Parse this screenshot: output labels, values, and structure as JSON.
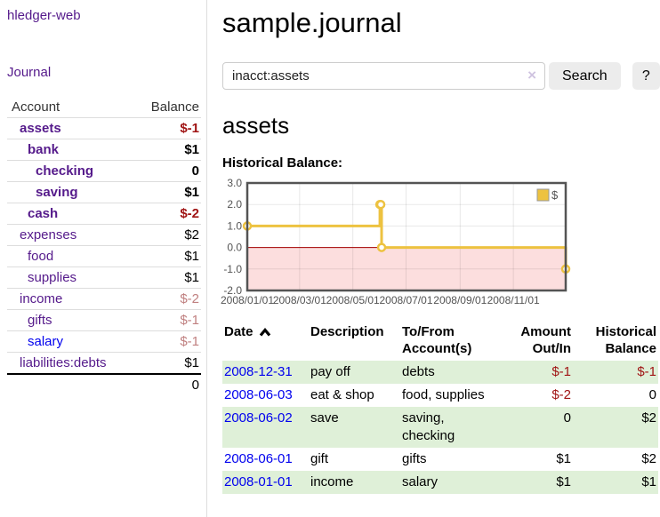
{
  "sidebar": {
    "brand": "hledger-web",
    "nav_journal": "Journal",
    "accounts_table": {
      "headers": [
        "Account",
        "Balance"
      ],
      "rows": [
        {
          "label": "assets",
          "depth": 1,
          "bold": true,
          "balance": "$-1",
          "balance_style": "neg-strong"
        },
        {
          "label": "bank",
          "depth": 2,
          "bold": true,
          "balance": "$1",
          "balance_style": ""
        },
        {
          "label": "checking",
          "depth": 3,
          "bold": true,
          "balance": "0",
          "balance_style": ""
        },
        {
          "label": "saving",
          "depth": 3,
          "bold": true,
          "balance": "$1",
          "balance_style": ""
        },
        {
          "label": "cash",
          "depth": 2,
          "bold": true,
          "balance": "$-2",
          "balance_style": "neg-strong"
        },
        {
          "label": "expenses",
          "depth": 1,
          "bold": false,
          "balance": "$2",
          "balance_style": ""
        },
        {
          "label": "food",
          "depth": 2,
          "bold": false,
          "balance": "$1",
          "balance_style": ""
        },
        {
          "label": "supplies",
          "depth": 2,
          "bold": false,
          "balance": "$1",
          "balance_style": ""
        },
        {
          "label": "income",
          "depth": 1,
          "bold": false,
          "balance": "$-2",
          "balance_style": "neg-soft"
        },
        {
          "label": "gifts",
          "depth": 2,
          "bold": false,
          "balance": "$-1",
          "balance_style": "neg-soft"
        },
        {
          "label": "salary",
          "depth": 2,
          "bold": false,
          "balance": "$-1",
          "balance_style": "neg-soft",
          "link_color": "blue"
        },
        {
          "label": "liabilities:debts",
          "depth": 1,
          "bold": false,
          "balance": "$1",
          "balance_style": ""
        }
      ],
      "total": "0"
    }
  },
  "main": {
    "title": "sample.journal",
    "search": {
      "value": "inacct:assets",
      "clear_icon": "×",
      "search_button": "Search",
      "help_button": "?"
    },
    "account_heading": "assets",
    "chart_label": "Historical Balance:",
    "register_table": {
      "headers": [
        "Date",
        "Description",
        "To/From Account(s)",
        "Amount Out/In",
        "Historical Balance"
      ],
      "rows": [
        {
          "date": "2008-12-31",
          "description": "pay off",
          "accounts": "debts",
          "amount": "$-1",
          "amount_negative": true,
          "balance": "$-1",
          "balance_negative": true
        },
        {
          "date": "2008-06-03",
          "description": "eat & shop",
          "accounts": "food, supplies",
          "amount": "$-2",
          "amount_negative": true,
          "balance": "0",
          "balance_negative": false
        },
        {
          "date": "2008-06-02",
          "description": "save",
          "accounts": "saving, checking",
          "amount": "0",
          "amount_negative": false,
          "balance": "$2",
          "balance_negative": false
        },
        {
          "date": "2008-06-01",
          "description": "gift",
          "accounts": "gifts",
          "amount": "$1",
          "amount_negative": false,
          "balance": "$2",
          "balance_negative": false
        },
        {
          "date": "2008-01-01",
          "description": "income",
          "accounts": "salary",
          "amount": "$1",
          "amount_negative": false,
          "balance": "$1",
          "balance_negative": false
        }
      ]
    }
  },
  "chart_data": {
    "type": "line",
    "step": true,
    "title": "Historical Balance",
    "series": [
      {
        "name": "$",
        "color": "#edc240",
        "points": [
          [
            "2008-01-01",
            1
          ],
          [
            "2008-06-01",
            2
          ],
          [
            "2008-06-02",
            2
          ],
          [
            "2008-06-03",
            0
          ],
          [
            "2008-12-31",
            -1
          ]
        ]
      }
    ],
    "xrange": [
      "2008-01-01",
      "2008-12-31"
    ],
    "ylim": [
      -2,
      3
    ],
    "yticks": [
      3,
      2,
      1,
      0,
      -1,
      -2
    ],
    "ytick_labels": [
      "3.0",
      "2.0",
      "1.0",
      "0.0",
      "-1.0",
      "-2.0"
    ],
    "xtick_labels": [
      "2008/01/01",
      "2008/03/01",
      "2008/05/01",
      "2008/07/01",
      "2008/09/01",
      "2008/11/01"
    ],
    "legend_position": "top-right",
    "grid": true,
    "negative_region_color": "#fcdede",
    "zero_line_color": "#a40000",
    "border_color": "#545454",
    "tick_label_color": "#545454"
  },
  "colors": {
    "link_purple": "#551a8b",
    "link_blue": "#0000ee",
    "negative_strong": "#a01414",
    "negative_soft": "#c08080",
    "row_shade_green": "#dff0d8",
    "button_gray": "#ececec",
    "chart_line_gold": "#edc240"
  }
}
